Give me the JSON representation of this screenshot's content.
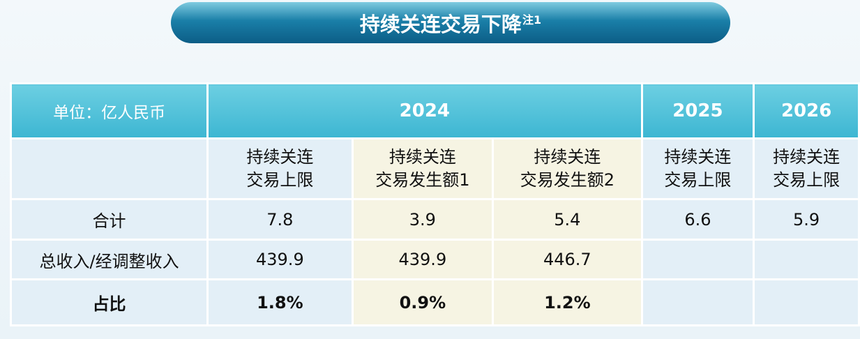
{
  "title": {
    "text": "持续关连交易下降",
    "note": "注1"
  },
  "table": {
    "unit": "单位：亿人民币",
    "groups": [
      {
        "year": "2024",
        "columns": [
          [
            "持续关连",
            "交易上限"
          ],
          [
            "持续关连",
            "交易发生额1"
          ],
          [
            "持续关连",
            "交易发生额2"
          ]
        ]
      },
      {
        "year": "2025",
        "columns": [
          [
            "持续关连",
            "交易上限"
          ]
        ]
      },
      {
        "year": "2026",
        "columns": [
          [
            "持续关连",
            "交易上限"
          ]
        ]
      }
    ],
    "rows": [
      {
        "label": "合计",
        "values": [
          "7.8",
          "3.9",
          "5.4",
          "6.6",
          "5.9"
        ]
      },
      {
        "label": "总收入/经调整收入",
        "values": [
          "439.9",
          "439.9",
          "446.7",
          null,
          null
        ]
      },
      {
        "label": "占比",
        "values": [
          "1.8%",
          "0.9%",
          "1.2%",
          null,
          null
        ]
      }
    ]
  }
}
